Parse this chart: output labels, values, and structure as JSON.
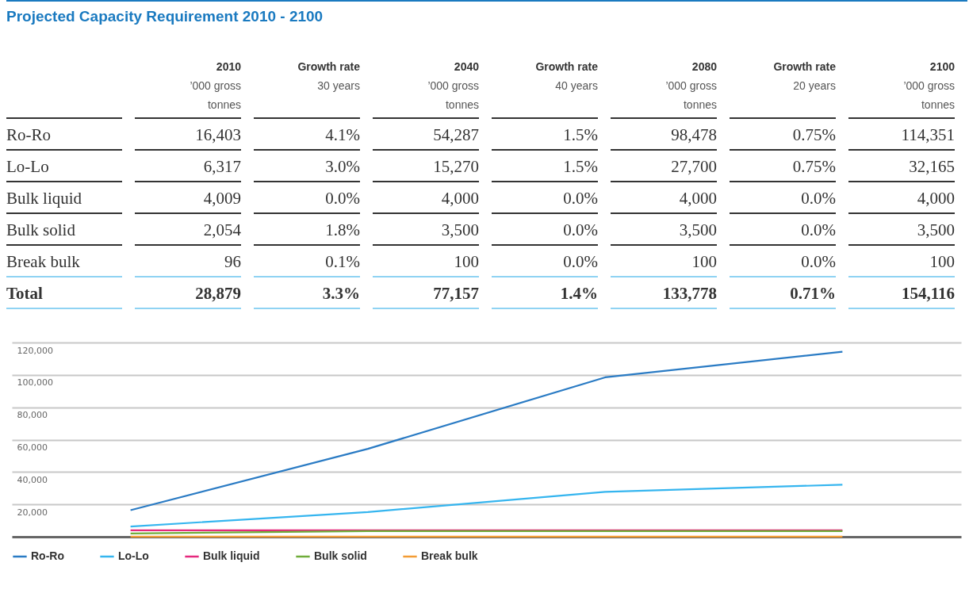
{
  "chart_data": {
    "type": "line",
    "title": "Projected Capacity Requirement 2010 - 2100",
    "categories": [
      null,
      null,
      null,
      null
    ],
    "series": [
      {
        "name": "Ro-Ro",
        "color": "#2a7bc4",
        "values": [
          16403,
          54287,
          98478,
          114351
        ],
        "value_labels": [
          "16,403",
          "54,287",
          "98,478",
          "114,351"
        ]
      },
      {
        "name": "Lo-Lo",
        "color": "#35b5ef",
        "values": [
          6317,
          15270,
          27700,
          32165
        ],
        "value_labels": [
          "6,317",
          "15,270",
          "27,700",
          "32,165"
        ]
      },
      {
        "name": "Bulk liquid",
        "color": "#e5287d",
        "values": [
          4009,
          4000,
          4000,
          4000
        ],
        "value_labels": [
          "4,009",
          "4,000",
          "4,000",
          "4,000"
        ]
      },
      {
        "name": "Bulk solid",
        "color": "#6fac3a",
        "values": [
          2054,
          3500,
          3500,
          3500
        ],
        "value_labels": [
          "2,054",
          "3,500",
          "3,500",
          "3,500"
        ]
      },
      {
        "name": "Break bulk",
        "color": "#f39c34",
        "values": [
          96,
          100,
          100,
          100
        ],
        "value_labels": [
          "96",
          "100",
          "100",
          "100"
        ]
      }
    ],
    "totals": [
      "28,879",
      "77,157",
      "133,778",
      "154,116"
    ],
    "annotations": [
      "’000 gross tonnes",
      "Total",
      "2010",
      "2040",
      "2080",
      "2100",
      "Growth rate",
      "30 years",
      "4.1%",
      "3.0%",
      "0.0%",
      "1.8%",
      "0.1%",
      "3.3%",
      "Growth rate",
      "40 years",
      "1.5%",
      "1.5%",
      "0.0%",
      "0.0%",
      "0.0%",
      "1.4%",
      "Growth rate",
      "20 years",
      "0.75%",
      "0.75%",
      "0.0%",
      "0.0%",
      "0.0%",
      "0.71%"
    ],
    "ylim": [
      0,
      120000
    ],
    "yticks": [
      {
        "value": 20000,
        "label": "20,000"
      },
      {
        "value": 40000,
        "label": "40,000"
      },
      {
        "value": 60000,
        "label": "60,000"
      },
      {
        "value": 80000,
        "label": "80,000"
      },
      {
        "value": 100000,
        "label": "100,000"
      },
      {
        "value": 120000,
        "label": "120,000"
      }
    ],
    "grid": "y",
    "legend": "bottom left",
    "tick_labels": "y",
    "marker": "none",
    "line_style": "solid"
  }
}
